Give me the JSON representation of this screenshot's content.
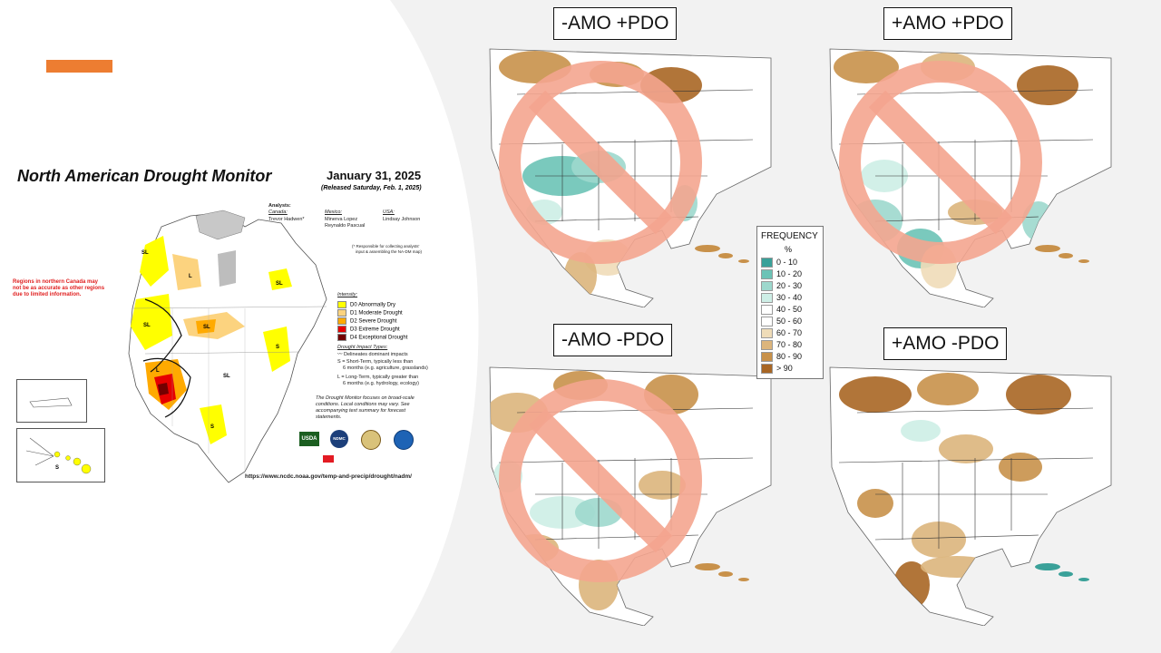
{
  "accent_color": "#ed7d31",
  "drought_monitor": {
    "title": "North American Drought Monitor",
    "date": "January 31, 2025",
    "released": "(Released Saturday, Feb. 1, 2025)",
    "analysts_heading": "Analysts:",
    "canada_label": "Canada:",
    "canada_analyst": "Trevor Hadwen*",
    "mexico_label": "Mexico:",
    "mexico_analysts": [
      "Minerva Lopez",
      "Reynaldo Pascual"
    ],
    "usa_label": "USA:",
    "usa_analyst": "Lindsay Johnson",
    "responsible_note_1": "(* Responsible for collecting analysts'",
    "responsible_note_2": "input & assembling the NA-DM map)",
    "canada_warning_1": "Regions in northern Canada may",
    "canada_warning_2": "not be as accurate as other regions",
    "canada_warning_3": "due to limited information.",
    "intensity_heading": "Intensity:",
    "intensity": [
      {
        "label": "D0 Abnormally Dry",
        "color": "#ffff00"
      },
      {
        "label": "D1 Moderate Drought",
        "color": "#fcd37f"
      },
      {
        "label": "D2 Severe Drought",
        "color": "#ffaa00"
      },
      {
        "label": "D3 Extreme Drought",
        "color": "#e60000"
      },
      {
        "label": "D4 Exceptional Drought",
        "color": "#730000"
      }
    ],
    "impact_heading": "Drought Impact Types:",
    "impact_line": "Delineates dominant impacts",
    "short_term_1": "S = Short-Term, typically less than",
    "short_term_2": "6 months (e.g. agriculture, grasslands)",
    "long_term_1": "L = Long-Term, typically greater than",
    "long_term_2": "6 months (e.g. hydrology, ecology)",
    "focus_1": "The Drought Monitor focuses on broad-scale",
    "focus_2": "conditions. Local conditions may vary. See",
    "focus_3": "accompanying text summary for forecast",
    "focus_4": "statements.",
    "url": "https://www.ncdc.noaa.gov/temp-and-precip/drought/nadm/",
    "logo_usda": "USDA",
    "logo_ndmc": "NDMC",
    "map_labels": {
      "s": "S",
      "l": "L",
      "sl": "SL"
    }
  },
  "panels": [
    {
      "label": "-AMO +PDO",
      "crossed": true
    },
    {
      "label": "+AMO +PDO",
      "crossed": true
    },
    {
      "label": "-AMO -PDO",
      "crossed": true
    },
    {
      "label": "+AMO -PDO",
      "crossed": false
    }
  ],
  "frequency_legend": {
    "title": "FREQUENCY",
    "unit": "%",
    "bins": [
      {
        "label": "0 - 10",
        "color": "#3aa199"
      },
      {
        "label": "10 - 20",
        "color": "#6cc3b6"
      },
      {
        "label": "20 - 30",
        "color": "#9dd8cd"
      },
      {
        "label": "30 - 40",
        "color": "#cdeee6"
      },
      {
        "label": "40 - 50",
        "color": "#ffffff"
      },
      {
        "label": "50 - 60",
        "color": "#ffffff"
      },
      {
        "label": "60 - 70",
        "color": "#efdcb8"
      },
      {
        "label": "70 - 80",
        "color": "#dcb57c"
      },
      {
        "label": "80 - 90",
        "color": "#c8914a"
      },
      {
        "label": "> 90",
        "color": "#a86624"
      }
    ]
  }
}
